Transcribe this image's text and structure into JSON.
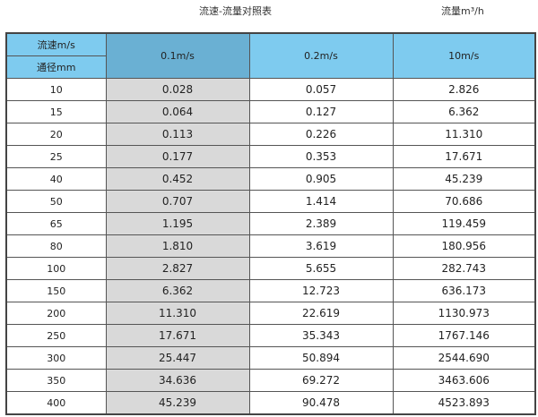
{
  "title": "流速-流量对照表",
  "unit_label": "流量m³/h",
  "header": {
    "velocity_label": "流速m/s",
    "diameter_label": "通径mm",
    "columns": [
      "0.1m/s",
      "0.2m/s",
      "10m/s"
    ]
  },
  "colors": {
    "header": "#7ecbef",
    "selected_header": "#6ab0d3",
    "selected_column": "#d9d9d9"
  },
  "rows": [
    {
      "dn": "10",
      "v": [
        "0.028",
        "0.057",
        "2.826"
      ]
    },
    {
      "dn": "15",
      "v": [
        "0.064",
        "0.127",
        "6.362"
      ]
    },
    {
      "dn": "20",
      "v": [
        "0.113",
        "0.226",
        "11.310"
      ]
    },
    {
      "dn": "25",
      "v": [
        "0.177",
        "0.353",
        "17.671"
      ]
    },
    {
      "dn": "40",
      "v": [
        "0.452",
        "0.905",
        "45.239"
      ]
    },
    {
      "dn": "50",
      "v": [
        "0.707",
        "1.414",
        "70.686"
      ]
    },
    {
      "dn": "65",
      "v": [
        "1.195",
        "2.389",
        "119.459"
      ]
    },
    {
      "dn": "80",
      "v": [
        "1.810",
        "3.619",
        "180.956"
      ]
    },
    {
      "dn": "100",
      "v": [
        "2.827",
        "5.655",
        "282.743"
      ]
    },
    {
      "dn": "150",
      "v": [
        "6.362",
        "12.723",
        "636.173"
      ]
    },
    {
      "dn": "200",
      "v": [
        "11.310",
        "22.619",
        "1130.973"
      ]
    },
    {
      "dn": "250",
      "v": [
        "17.671",
        "35.343",
        "1767.146"
      ]
    },
    {
      "dn": "300",
      "v": [
        "25.447",
        "50.894",
        "2544.690"
      ]
    },
    {
      "dn": "350",
      "v": [
        "34.636",
        "69.272",
        "3463.606"
      ]
    },
    {
      "dn": "400",
      "v": [
        "45.239",
        "90.478",
        "4523.893"
      ]
    }
  ]
}
